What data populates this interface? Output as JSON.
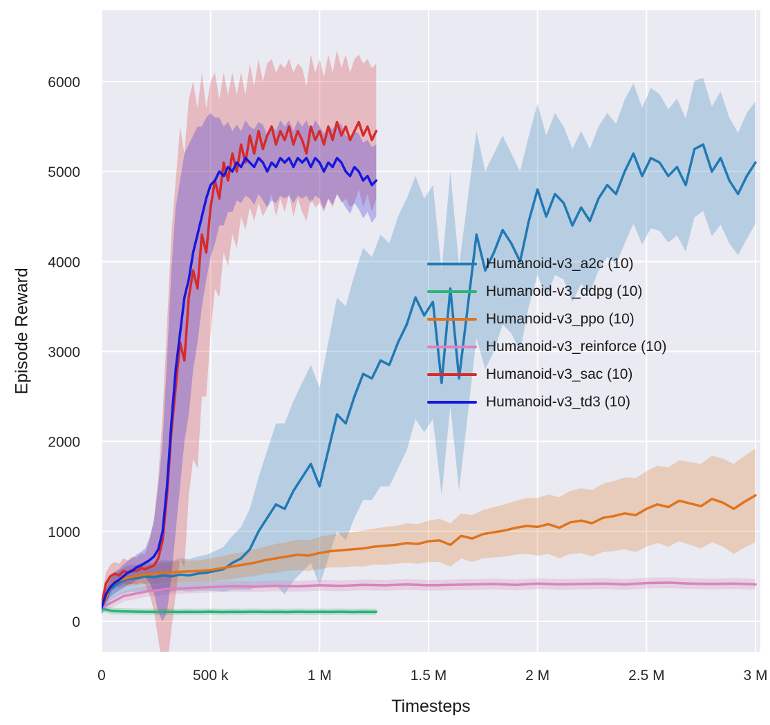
{
  "chart_data": {
    "type": "line",
    "title": "",
    "xlabel": "Timesteps",
    "ylabel": "Episode Reward",
    "x_values_unit": "thousands of timesteps",
    "xlim": [
      0,
      3000
    ],
    "ylim": [
      0,
      6000
    ],
    "grid": true,
    "legend_position": "center-right-inside",
    "colors": {
      "plot_background": "#eaeaf2",
      "grid": "#ffffff",
      "tick": "#262626",
      "label": "#1a1a1a"
    },
    "x_ticks": [
      {
        "v": 0,
        "label": "0"
      },
      {
        "v": 500,
        "label": "500 k"
      },
      {
        "v": 1000,
        "label": "1 M"
      },
      {
        "v": 1500,
        "label": "1.5 M"
      },
      {
        "v": 2000,
        "label": "2 M"
      },
      {
        "v": 2500,
        "label": "2.5 M"
      },
      {
        "v": 3000,
        "label": "3 M"
      }
    ],
    "y_ticks": [
      {
        "v": 0,
        "label": "0"
      },
      {
        "v": 1000,
        "label": "1000"
      },
      {
        "v": 2000,
        "label": "2000"
      },
      {
        "v": 3000,
        "label": "3000"
      },
      {
        "v": 4000,
        "label": "4000"
      },
      {
        "v": 5000,
        "label": "5000"
      },
      {
        "v": 6000,
        "label": "6000"
      }
    ],
    "series": [
      {
        "id": "a2c",
        "name": "Humanoid-v3_a2c (10)",
        "color": "#2079b4",
        "x": [
          0,
          40,
          80,
          120,
          160,
          200,
          240,
          280,
          320,
          360,
          400,
          440,
          480,
          520,
          560,
          600,
          640,
          680,
          720,
          760,
          800,
          840,
          880,
          920,
          960,
          1000,
          1040,
          1080,
          1120,
          1160,
          1200,
          1240,
          1280,
          1320,
          1360,
          1400,
          1440,
          1480,
          1520,
          1560,
          1600,
          1640,
          1680,
          1720,
          1760,
          1800,
          1840,
          1880,
          1920,
          1960,
          2000,
          2040,
          2080,
          2120,
          2160,
          2200,
          2240,
          2280,
          2320,
          2360,
          2400,
          2440,
          2480,
          2520,
          2560,
          2600,
          2640,
          2680,
          2720,
          2760,
          2800,
          2840,
          2880,
          2920,
          2960,
          3000
        ],
        "mean": [
          150,
          350,
          430,
          470,
          480,
          500,
          490,
          510,
          500,
          520,
          510,
          530,
          540,
          560,
          580,
          650,
          700,
          800,
          1000,
          1150,
          1300,
          1250,
          1450,
          1600,
          1750,
          1500,
          1900,
          2300,
          2200,
          2500,
          2750,
          2700,
          2900,
          2850,
          3100,
          3300,
          3600,
          3400,
          3550,
          2650,
          3700,
          2700,
          3500,
          4300,
          3900,
          4100,
          4350,
          4200,
          4000,
          4450,
          4800,
          4500,
          4750,
          4650,
          4400,
          4600,
          4450,
          4700,
          4850,
          4750,
          5000,
          5200,
          4950,
          5150,
          5100,
          4950,
          5050,
          4850,
          5250,
          5300,
          5000,
          5150,
          4900,
          4750,
          4950,
          5100
        ],
        "spread": [
          80,
          120,
          140,
          150,
          150,
          160,
          160,
          170,
          170,
          180,
          180,
          190,
          200,
          220,
          250,
          300,
          350,
          450,
          600,
          750,
          900,
          950,
          1000,
          1050,
          1100,
          1100,
          1200,
          1300,
          1300,
          1350,
          1400,
          1350,
          1400,
          1350,
          1400,
          1400,
          1350,
          1300,
          1300,
          1250,
          1300,
          1250,
          1200,
          1150,
          1100,
          1100,
          1050,
          1000,
          1000,
          950,
          950,
          900,
          900,
          850,
          850,
          850,
          800,
          800,
          800,
          780,
          800,
          780,
          760,
          780,
          760,
          740,
          760,
          740,
          760,
          740,
          720,
          740,
          700,
          680,
          700,
          680
        ]
      },
      {
        "id": "ddpg",
        "name": "Humanoid-v3_ddpg (10)",
        "color": "#2cb475",
        "x": [
          0,
          50,
          100,
          150,
          200,
          250,
          300,
          350,
          400,
          450,
          500,
          550,
          600,
          650,
          700,
          750,
          800,
          850,
          900,
          950,
          1000,
          1050,
          1100,
          1150,
          1200,
          1250,
          1260
        ],
        "mean": [
          140,
          115,
          110,
          108,
          106,
          105,
          107,
          104,
          106,
          105,
          107,
          104,
          106,
          105,
          107,
          105,
          106,
          104,
          107,
          105,
          106,
          105,
          107,
          104,
          106,
          105,
          106
        ],
        "spread": 35
      },
      {
        "id": "ppo",
        "name": "Humanoid-v3_ppo (10)",
        "color": "#e0731d",
        "x": [
          0,
          50,
          100,
          150,
          200,
          250,
          300,
          350,
          400,
          450,
          500,
          550,
          600,
          650,
          700,
          750,
          800,
          850,
          900,
          950,
          1000,
          1050,
          1100,
          1150,
          1200,
          1250,
          1300,
          1350,
          1400,
          1450,
          1500,
          1550,
          1600,
          1650,
          1700,
          1750,
          1800,
          1850,
          1900,
          1950,
          2000,
          2050,
          2100,
          2150,
          2200,
          2250,
          2300,
          2350,
          2400,
          2450,
          2500,
          2550,
          2600,
          2650,
          2700,
          2750,
          2800,
          2850,
          2900,
          2950,
          3000
        ],
        "mean": [
          150,
          430,
          470,
          500,
          520,
          530,
          540,
          550,
          555,
          560,
          570,
          590,
          610,
          630,
          650,
          680,
          700,
          720,
          740,
          730,
          760,
          780,
          790,
          800,
          810,
          830,
          840,
          850,
          870,
          860,
          890,
          900,
          850,
          950,
          920,
          970,
          990,
          1010,
          1040,
          1060,
          1050,
          1080,
          1040,
          1100,
          1120,
          1090,
          1150,
          1170,
          1200,
          1180,
          1250,
          1300,
          1270,
          1340,
          1310,
          1280,
          1360,
          1320,
          1250,
          1330,
          1400
        ],
        "spread": [
          60,
          80,
          90,
          100,
          100,
          110,
          110,
          120,
          120,
          120,
          130,
          130,
          140,
          140,
          150,
          150,
          160,
          160,
          170,
          170,
          180,
          180,
          190,
          190,
          200,
          200,
          210,
          210,
          220,
          220,
          230,
          240,
          240,
          250,
          260,
          270,
          280,
          290,
          300,
          310,
          320,
          330,
          340,
          350,
          360,
          370,
          380,
          390,
          400,
          410,
          420,
          430,
          440,
          450,
          460,
          470,
          480,
          490,
          500,
          510,
          520
        ]
      },
      {
        "id": "reinforce",
        "name": "Humanoid-v3_reinforce (10)",
        "color": "#d983bc",
        "x": [
          0,
          100,
          200,
          300,
          400,
          500,
          600,
          700,
          800,
          900,
          1000,
          1100,
          1200,
          1300,
          1400,
          1500,
          1600,
          1700,
          1800,
          1900,
          2000,
          2100,
          2200,
          2300,
          2400,
          2500,
          2600,
          2700,
          2800,
          2900,
          3000
        ],
        "mean": [
          150,
          280,
          330,
          360,
          370,
          380,
          390,
          385,
          395,
          390,
          400,
          395,
          405,
          400,
          410,
          400,
          405,
          410,
          415,
          405,
          420,
          410,
          415,
          420,
          410,
          425,
          430,
          420,
          415,
          420,
          410
        ],
        "spread": 60
      },
      {
        "id": "sac",
        "name": "Humanoid-v3_sac (10)",
        "color": "#d62b2b",
        "x": [
          0,
          20,
          40,
          60,
          80,
          100,
          120,
          140,
          160,
          180,
          200,
          220,
          240,
          260,
          280,
          300,
          320,
          340,
          360,
          380,
          400,
          420,
          440,
          460,
          480,
          500,
          520,
          540,
          560,
          580,
          600,
          620,
          640,
          660,
          680,
          700,
          720,
          740,
          760,
          780,
          800,
          820,
          840,
          860,
          880,
          900,
          920,
          940,
          960,
          980,
          1000,
          1020,
          1040,
          1060,
          1080,
          1100,
          1120,
          1140,
          1160,
          1180,
          1200,
          1220,
          1240,
          1260
        ],
        "mean": [
          180,
          420,
          500,
          530,
          510,
          560,
          540,
          570,
          560,
          590,
          580,
          600,
          620,
          700,
          900,
          1400,
          2100,
          2600,
          3100,
          2900,
          3600,
          3900,
          3700,
          4300,
          4100,
          4600,
          4900,
          4700,
          5100,
          4900,
          5200,
          5000,
          5300,
          5100,
          5400,
          5200,
          5450,
          5250,
          5400,
          5500,
          5300,
          5450,
          5350,
          5500,
          5300,
          5450,
          5350,
          5200,
          5500,
          5350,
          5450,
          5300,
          5500,
          5350,
          5550,
          5400,
          5500,
          5350,
          5450,
          5550,
          5400,
          5500,
          5350,
          5450
        ],
        "spread": [
          80,
          120,
          130,
          130,
          130,
          140,
          140,
          150,
          150,
          160,
          170,
          300,
          500,
          900,
          1400,
          1900,
          2200,
          2300,
          2400,
          2300,
          2200,
          2100,
          2000,
          1800,
          1600,
          1400,
          1200,
          1100,
          1000,
          950,
          900,
          850,
          800,
          750,
          800,
          750,
          800,
          750,
          800,
          750,
          800,
          750,
          800,
          750,
          800,
          750,
          800,
          750,
          800,
          750,
          800,
          750,
          800,
          750,
          800,
          750,
          800,
          750,
          800,
          750,
          800,
          750,
          800,
          750
        ]
      },
      {
        "id": "td3",
        "name": "Humanoid-v3_td3 (10)",
        "color": "#1717dd",
        "x": [
          0,
          20,
          40,
          60,
          80,
          100,
          120,
          140,
          160,
          180,
          200,
          220,
          240,
          260,
          280,
          300,
          320,
          340,
          360,
          380,
          400,
          420,
          440,
          460,
          480,
          500,
          520,
          540,
          560,
          580,
          600,
          620,
          640,
          660,
          680,
          700,
          720,
          740,
          760,
          780,
          800,
          820,
          840,
          860,
          880,
          900,
          920,
          940,
          960,
          980,
          1000,
          1020,
          1040,
          1060,
          1080,
          1100,
          1120,
          1140,
          1160,
          1180,
          1200,
          1220,
          1240,
          1260
        ],
        "mean": [
          150,
          300,
          380,
          430,
          460,
          500,
          540,
          560,
          600,
          620,
          650,
          680,
          720,
          800,
          1000,
          1500,
          2200,
          2800,
          3200,
          3600,
          3800,
          4100,
          4300,
          4500,
          4700,
          4850,
          4900,
          5000,
          4950,
          5050,
          5000,
          5100,
          5050,
          5150,
          5100,
          5050,
          5150,
          5100,
          5000,
          5100,
          5050,
          5150,
          5100,
          5150,
          5050,
          5150,
          5100,
          5150,
          5050,
          5150,
          5100,
          5000,
          5100,
          5050,
          5150,
          5100,
          5000,
          4950,
          5050,
          5000,
          4900,
          4950,
          4850,
          4900
        ],
        "spread": [
          70,
          100,
          110,
          120,
          120,
          130,
          130,
          140,
          140,
          150,
          160,
          250,
          400,
          700,
          1000,
          1400,
          1700,
          1800,
          1700,
          1600,
          1500,
          1300,
          1200,
          1000,
          900,
          800,
          700,
          600,
          550,
          500,
          450,
          420,
          400,
          420,
          400,
          420,
          400,
          420,
          400,
          420,
          400,
          420,
          400,
          420,
          400,
          420,
          400,
          420,
          400,
          420,
          400,
          420,
          400,
          420,
          400,
          420,
          400,
          420,
          400,
          420,
          420,
          400,
          420,
          400
        ]
      }
    ]
  }
}
